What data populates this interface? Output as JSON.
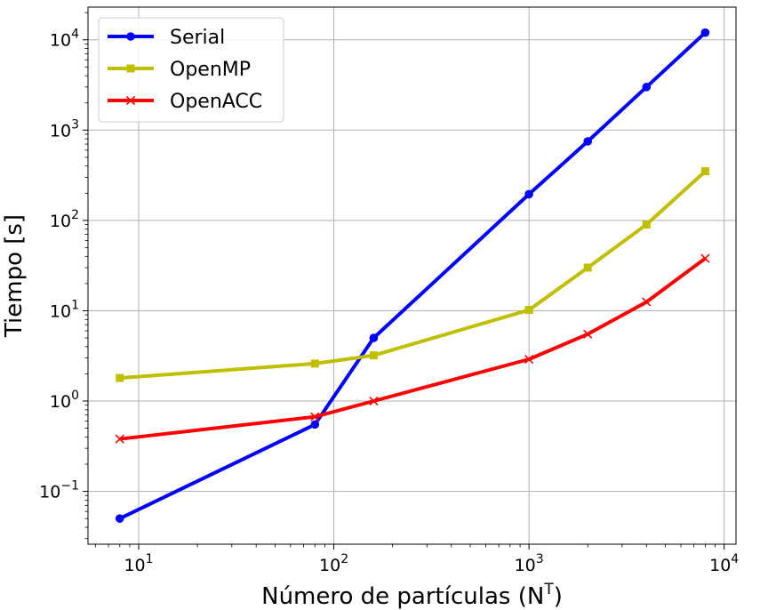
{
  "chart_data": {
    "type": "line",
    "title": "",
    "xlabel": "Número de partículas (N",
    "xlabel_sup": "T",
    "xlabel_end": ")",
    "ylabel": "Tiempo [s]",
    "xscale": "log",
    "yscale": "log",
    "xlim": [
      5.5,
      11500
    ],
    "ylim": [
      0.026,
      23000
    ],
    "grid": true,
    "legend_position": "top-left",
    "x_ticks": [
      {
        "value": 10,
        "base": "10",
        "exp": "1"
      },
      {
        "value": 100,
        "base": "10",
        "exp": "2"
      },
      {
        "value": 1000,
        "base": "10",
        "exp": "3"
      },
      {
        "value": 10000,
        "base": "10",
        "exp": "4"
      }
    ],
    "y_ticks": [
      {
        "value": 0.1,
        "base": "10",
        "exp": "−1"
      },
      {
        "value": 1,
        "base": "10",
        "exp": "0"
      },
      {
        "value": 10,
        "base": "10",
        "exp": "1"
      },
      {
        "value": 100,
        "base": "10",
        "exp": "2"
      },
      {
        "value": 1000,
        "base": "10",
        "exp": "3"
      },
      {
        "value": 10000,
        "base": "10",
        "exp": "4"
      }
    ],
    "series": [
      {
        "name": "Serial",
        "color": "#0000ff",
        "marker": "circle",
        "x": [
          8,
          80,
          160,
          1000,
          2000,
          4000,
          8000
        ],
        "values": [
          0.05,
          0.55,
          5.0,
          195,
          750,
          3000,
          12000
        ]
      },
      {
        "name": "OpenMP",
        "color": "#bfbf00",
        "marker": "square",
        "x": [
          8,
          80,
          160,
          1000,
          2000,
          4000,
          8000
        ],
        "values": [
          1.8,
          2.6,
          3.2,
          10.2,
          30,
          90,
          350
        ]
      },
      {
        "name": "OpenACC",
        "color": "#ff0000",
        "marker": "x",
        "x": [
          8,
          80,
          160,
          1000,
          2000,
          4000,
          8000
        ],
        "values": [
          0.38,
          0.67,
          1.0,
          2.9,
          5.5,
          12.5,
          38
        ]
      }
    ]
  }
}
